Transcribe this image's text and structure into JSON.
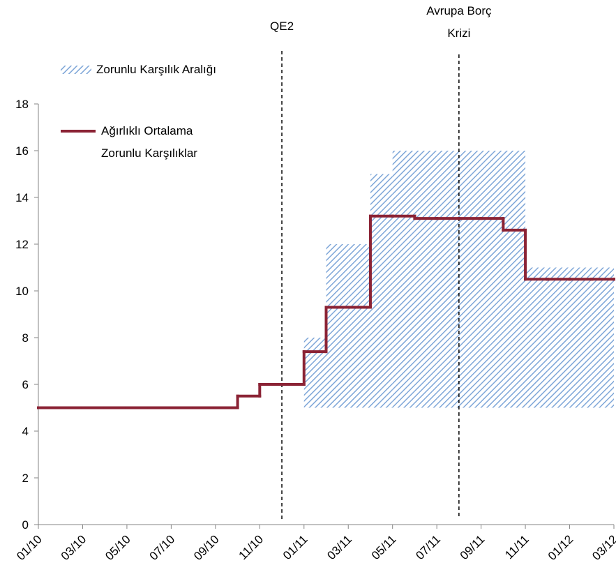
{
  "chart_data": {
    "type": "step",
    "x": [
      "01/10",
      "02/10",
      "03/10",
      "04/10",
      "05/10",
      "06/10",
      "07/10",
      "08/10",
      "09/10",
      "10/10",
      "11/10",
      "12/10",
      "01/11",
      "02/11",
      "03/11",
      "04/11",
      "05/11",
      "06/11",
      "07/11",
      "08/11",
      "09/11",
      "10/11",
      "11/11",
      "12/11",
      "01/12",
      "02/12",
      "03/12"
    ],
    "xticks": [
      "01/10",
      "03/10",
      "05/10",
      "07/10",
      "09/10",
      "11/10",
      "01/11",
      "03/11",
      "05/11",
      "07/11",
      "09/11",
      "11/11",
      "01/12",
      "03/12"
    ],
    "ylim": [
      0,
      18
    ],
    "yticks": [
      0,
      2,
      4,
      6,
      8,
      10,
      12,
      14,
      16,
      18
    ],
    "legend": "upper left",
    "series": [
      {
        "name": "Zorunlu Karşılık Aralığı",
        "kind": "range",
        "color": "#7ea6d8",
        "low": [
          null,
          null,
          null,
          null,
          null,
          null,
          null,
          null,
          null,
          null,
          null,
          null,
          5,
          5,
          5,
          5,
          5,
          5,
          5,
          5,
          5,
          5,
          5,
          5,
          5,
          5,
          5
        ],
        "high": [
          null,
          null,
          null,
          null,
          null,
          null,
          null,
          null,
          null,
          null,
          null,
          null,
          8,
          12,
          12,
          15,
          16,
          16,
          16,
          16,
          16,
          16,
          11,
          11,
          11,
          11,
          11
        ]
      },
      {
        "name": "Ağırlıklı Ortalama Zorunlu Karşılıklar",
        "kind": "line",
        "color": "#8b2335",
        "values": [
          5,
          5,
          5,
          5,
          5,
          5,
          5,
          5,
          5,
          5.5,
          6,
          6,
          7.4,
          9.3,
          9.3,
          13.2,
          13.2,
          13.1,
          13.1,
          13.1,
          13.1,
          12.6,
          10.5,
          10.5,
          10.5,
          10.5,
          10.5
        ]
      }
    ],
    "annotations": [
      {
        "text": "QE2",
        "x": "12/10"
      },
      {
        "text": "Avrupa Borç Krizi",
        "x": "08/11"
      }
    ]
  }
}
